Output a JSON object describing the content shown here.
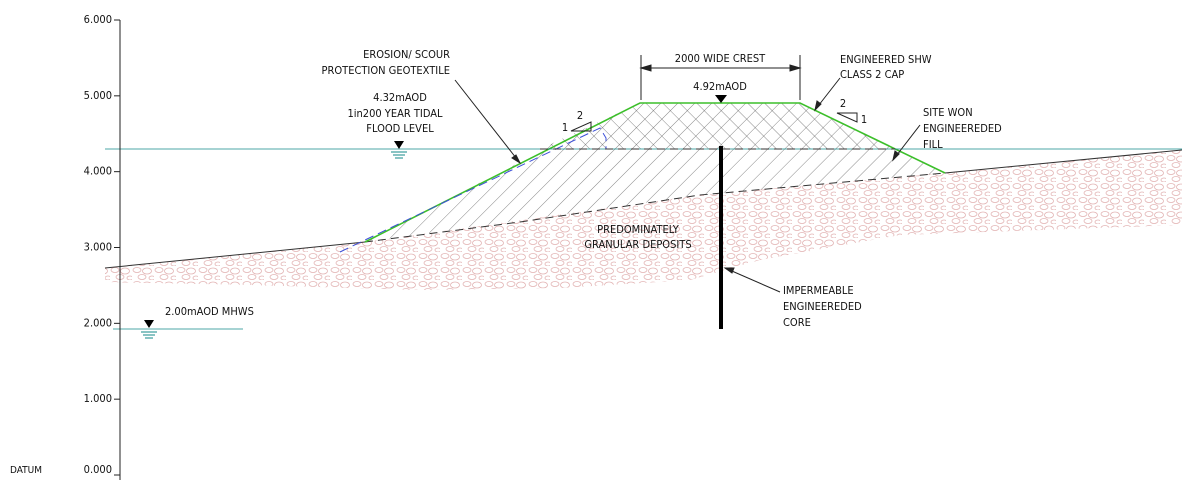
{
  "axis": {
    "ticks": [
      "6.000",
      "5.000",
      "4.000",
      "3.000",
      "2.000",
      "1.000",
      "0.000"
    ],
    "datum": "DATUM"
  },
  "labels": {
    "geotextile": [
      "EROSION/ SCOUR",
      "PROTECTION GEOTEXTILE"
    ],
    "flood_level": [
      "4.32mAOD",
      "1in200 YEAR TIDAL",
      "FLOOD LEVEL"
    ],
    "crest_width": "2000 WIDE CREST",
    "crest_level": "4.92mAOD",
    "cap": [
      "ENGINEERED SHW",
      "CLASS 2 CAP"
    ],
    "fill": [
      "SITE WON",
      "ENGINEEREDED",
      "FILL"
    ],
    "deposits": [
      "PREDOMINATELY",
      "GRANULAR DEPOSITS"
    ],
    "core": [
      "IMPERMEABLE",
      "ENGINEEREDED",
      "CORE"
    ],
    "mhws": "2.00mAOD MHWS",
    "slope_left": [
      "2",
      "1"
    ],
    "slope_right": [
      "2",
      "1"
    ]
  }
}
